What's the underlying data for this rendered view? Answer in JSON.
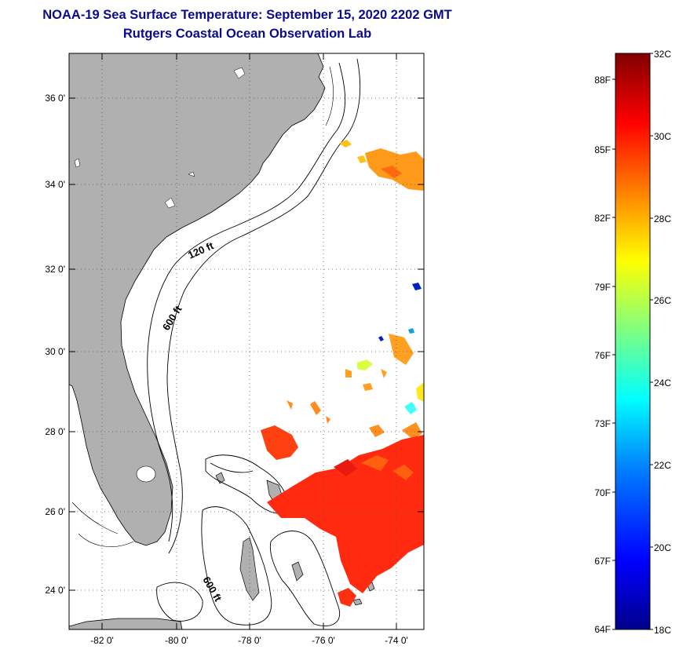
{
  "title": {
    "line1": "NOAA-19 Sea Surface Temperature:  September 15, 2020 2202 GMT",
    "line2": "Rutgers Coastal Ocean Observation Lab"
  },
  "map": {
    "lat_labels": [
      "36 0'",
      "34 0'",
      "32 0'",
      "30 0'",
      "28 0'",
      "26 0'",
      "24 0'"
    ],
    "lon_labels": [
      "-82 0'",
      "-80 0'",
      "-78 0'",
      "-76 0'",
      "-74 0'"
    ],
    "lat_range": [
      23,
      37.1
    ],
    "lon_range": [
      -83,
      -73
    ],
    "land_color": "#b0b0b0",
    "contours": {
      "shelf": "120 ft",
      "slope": "600 ft",
      "bahamas": "600 ft"
    }
  },
  "colorbar": {
    "celsius_labels": [
      "32C",
      "30C",
      "28C",
      "26C",
      "24C",
      "22C",
      "20C",
      "18C"
    ],
    "fahrenheit_labels": [
      "88F",
      "85F",
      "82F",
      "79F",
      "76F",
      "73F",
      "70F",
      "67F",
      "64F"
    ],
    "range_c": [
      18,
      32
    ],
    "colors": [
      "#00008b",
      "#0000ff",
      "#0080ff",
      "#00ffff",
      "#80ff80",
      "#ffff00",
      "#ff8000",
      "#ff0000",
      "#800000"
    ]
  }
}
